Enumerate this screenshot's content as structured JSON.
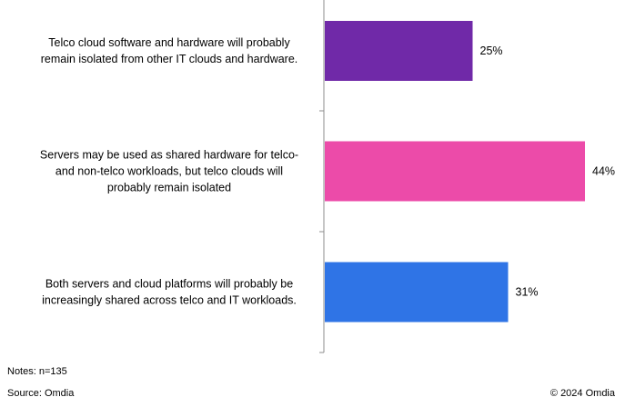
{
  "chart_data": {
    "type": "bar",
    "orientation": "horizontal",
    "categories": [
      [
        "Telco cloud software and hardware will probably",
        "remain isolated from other IT clouds and hardware."
      ],
      [
        "Servers may be used as shared hardware for telco-",
        "and non-telco workloads, but telco clouds will",
        "probably remain isolated"
      ],
      [
        "Both servers and cloud platforms will probably be",
        "increasingly shared across telco and IT workloads."
      ]
    ],
    "values": [
      25,
      44,
      31
    ],
    "value_labels": [
      "25%",
      "44%",
      "31%"
    ],
    "colors": [
      "#7029a8",
      "#ec4ba9",
      "#2f74e6"
    ],
    "xlim": [
      0,
      50
    ],
    "grid": false,
    "legend": "none"
  },
  "footer": {
    "notes": "Notes: n=135",
    "source": "Source: Omdia",
    "copyright": "© 2024 Omdia"
  }
}
